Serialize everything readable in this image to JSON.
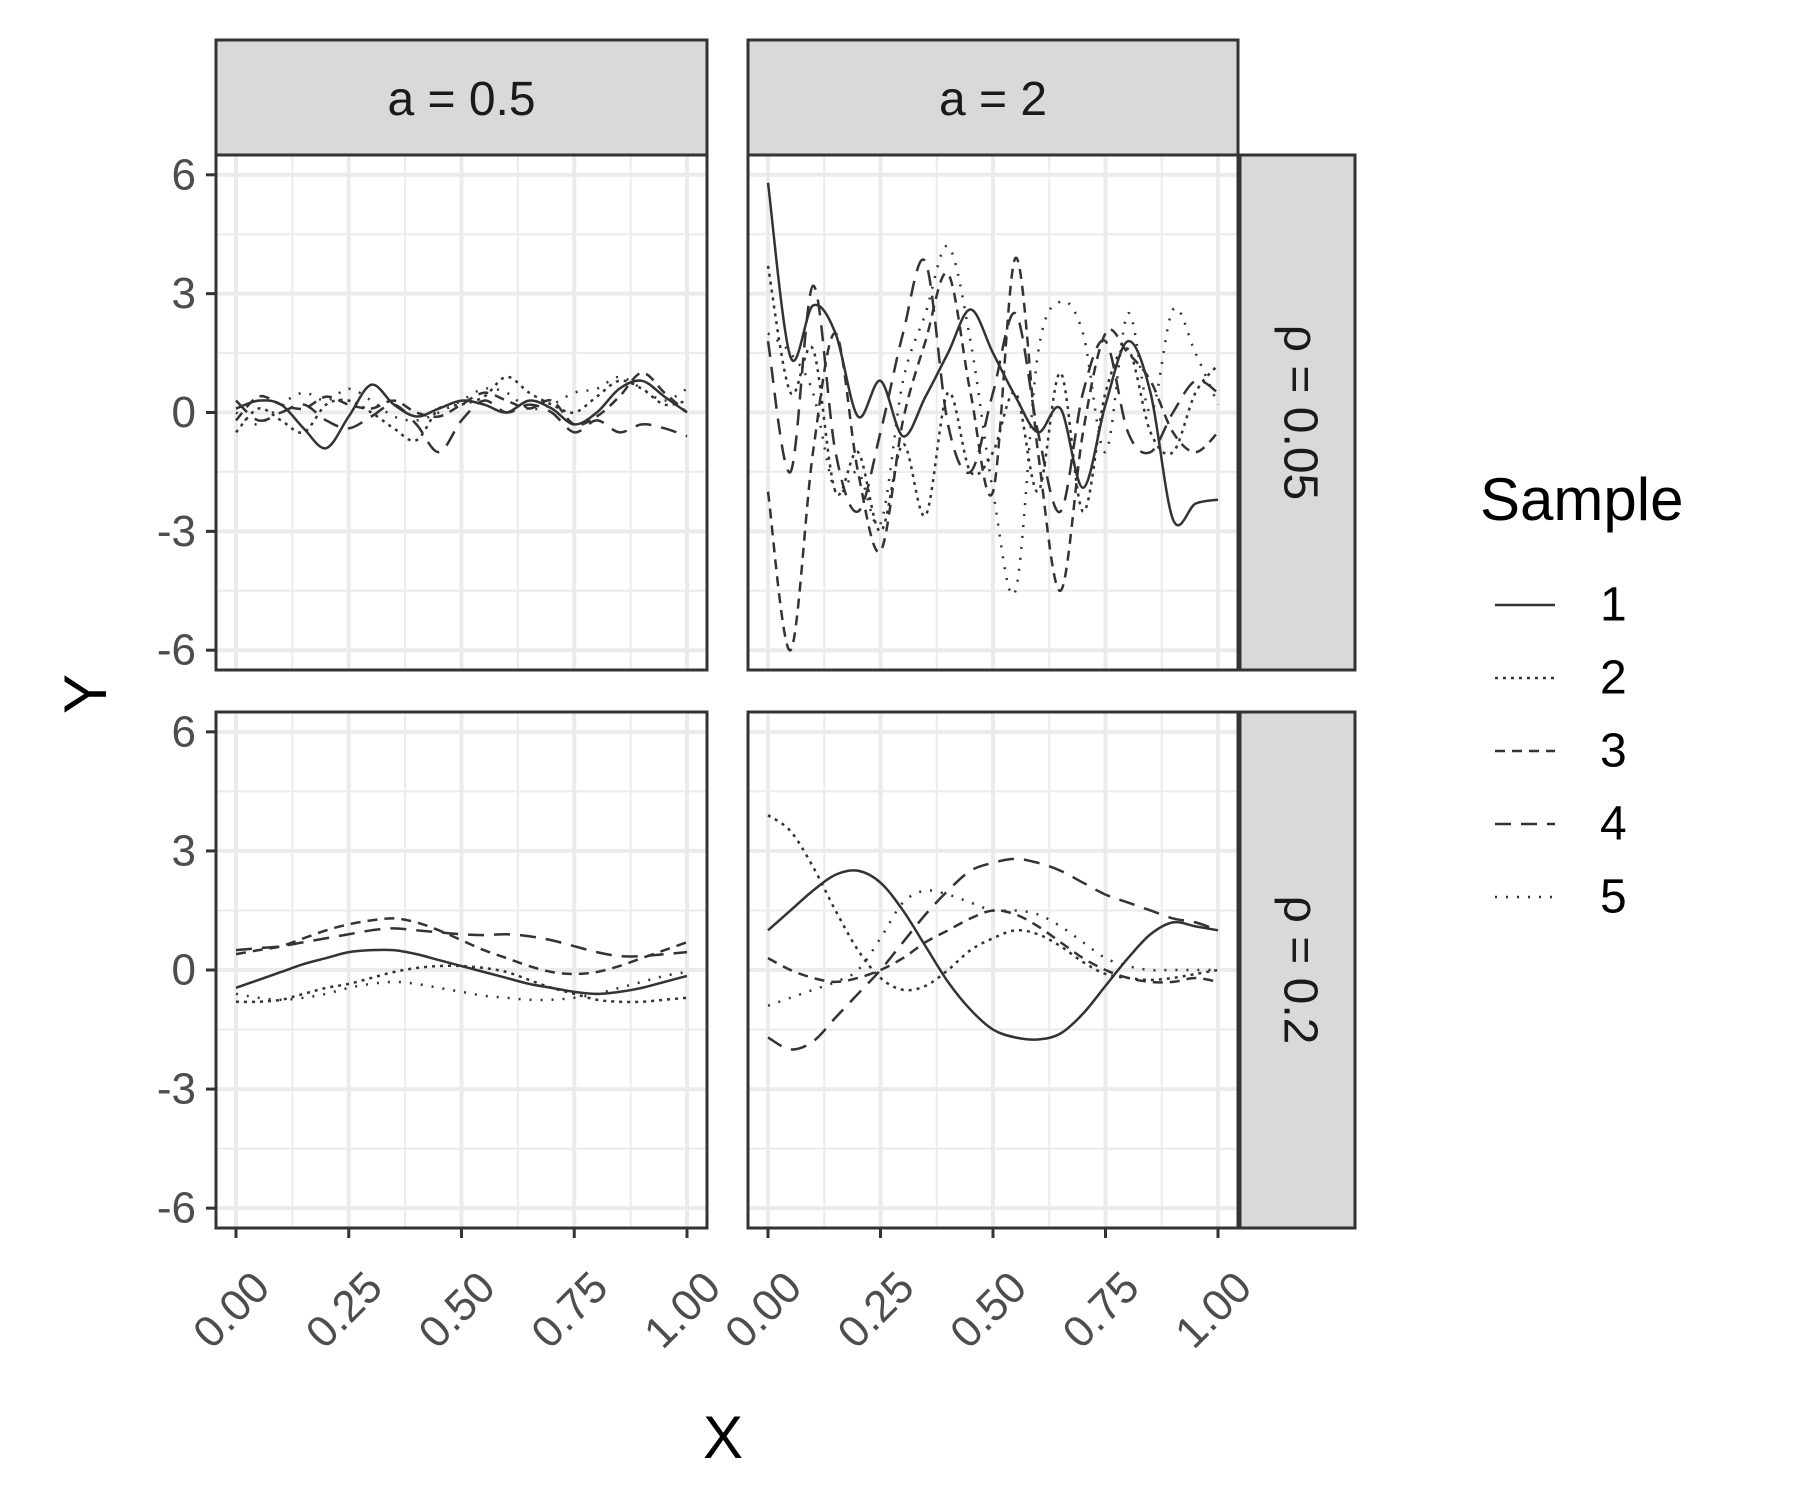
{
  "chart_data": {
    "type": "line",
    "xlabel": "X",
    "ylabel": "Y",
    "x_ticks": [
      "0.00",
      "0.25",
      "0.50",
      "0.75",
      "1.00"
    ],
    "y_ticks": [
      "6",
      "3",
      "0",
      "-3",
      "-6"
    ],
    "xlim": [
      0,
      1
    ],
    "ylim": [
      -6.5,
      6.5
    ],
    "grid": true,
    "legend": {
      "title": "Sample",
      "position": "right",
      "entries": [
        {
          "label": "1",
          "linetype": "solid"
        },
        {
          "label": "2",
          "linetype": "dotted-fine"
        },
        {
          "label": "3",
          "linetype": "dashed"
        },
        {
          "label": "4",
          "linetype": "longdash"
        },
        {
          "label": "5",
          "linetype": "dotted"
        }
      ]
    },
    "col_strips": [
      "a = 0.5",
      "a = 2"
    ],
    "row_strips": [
      "ρ = 0.05",
      "ρ = 0.2"
    ],
    "x": [
      0.0,
      0.05,
      0.1,
      0.15,
      0.2,
      0.25,
      0.3,
      0.35,
      0.4,
      0.45,
      0.5,
      0.55,
      0.6,
      0.65,
      0.7,
      0.75,
      0.8,
      0.85,
      0.9,
      0.95,
      1.0
    ],
    "panels": [
      {
        "row": 0,
        "col": 0,
        "series": [
          {
            "name": "1",
            "values": [
              0.1,
              0.3,
              0.2,
              -0.4,
              -0.9,
              -0.1,
              0.7,
              0.2,
              -0.1,
              0.1,
              0.3,
              0.2,
              0.0,
              0.3,
              0.1,
              -0.3,
              0.0,
              0.6,
              0.8,
              0.4,
              0.0
            ]
          },
          {
            "name": "2",
            "values": [
              -0.5,
              0.1,
              -0.2,
              -0.5,
              0.2,
              0.3,
              0.0,
              -0.4,
              -0.7,
              0.1,
              0.2,
              0.4,
              0.9,
              0.5,
              0.2,
              0.0,
              0.4,
              0.8,
              0.6,
              0.2,
              0.3
            ]
          },
          {
            "name": "3",
            "values": [
              -0.2,
              0.4,
              0.2,
              0.1,
              0.4,
              0.2,
              0.1,
              0.3,
              0.0,
              -0.1,
              0.2,
              0.5,
              0.3,
              0.1,
              0.3,
              -0.3,
              -0.1,
              0.4,
              1.0,
              0.5,
              0.0
            ]
          },
          {
            "name": "4",
            "values": [
              0.3,
              -0.2,
              0.0,
              0.2,
              -0.2,
              -0.4,
              -0.1,
              0.2,
              -0.3,
              -1.0,
              -0.2,
              0.3,
              0.0,
              0.2,
              0.0,
              -0.5,
              -0.2,
              -0.5,
              -0.3,
              -0.4,
              -0.6
            ]
          },
          {
            "name": "5",
            "values": [
              0.0,
              -0.3,
              0.2,
              0.5,
              0.3,
              0.6,
              0.3,
              -0.1,
              -0.2,
              0.0,
              0.3,
              0.6,
              0.5,
              0.1,
              0.2,
              0.5,
              0.6,
              0.9,
              0.6,
              0.3,
              0.6
            ]
          }
        ]
      },
      {
        "row": 0,
        "col": 1,
        "series": [
          {
            "name": "1",
            "values": [
              5.8,
              1.4,
              2.7,
              2.0,
              -0.1,
              0.8,
              -0.6,
              0.4,
              1.5,
              2.6,
              1.5,
              0.4,
              -0.5,
              0.1,
              -1.9,
              0.2,
              1.8,
              0.5,
              -2.7,
              -2.3,
              -2.2
            ]
          },
          {
            "name": "2",
            "values": [
              3.7,
              0.5,
              1.6,
              -2.0,
              -1.0,
              -3.0,
              -0.8,
              -2.6,
              0.5,
              -1.5,
              -1.0,
              0.5,
              -2.0,
              1.0,
              -2.5,
              0.5,
              1.6,
              -0.5,
              -1.0,
              0.5,
              1.2
            ]
          },
          {
            "name": "3",
            "values": [
              -2.0,
              -6.0,
              -1.0,
              2.0,
              -1.5,
              -3.5,
              -0.2,
              1.8,
              3.5,
              0.5,
              -2.0,
              3.9,
              -1.0,
              -4.5,
              -0.5,
              2.0,
              1.5,
              0.8,
              -0.5,
              -1.0,
              -0.5
            ]
          },
          {
            "name": "4",
            "values": [
              1.8,
              -1.5,
              3.2,
              -1.0,
              -2.5,
              -0.5,
              2.0,
              3.8,
              -0.3,
              -1.5,
              0.5,
              2.5,
              -0.5,
              -2.5,
              0.5,
              1.8,
              -0.5,
              -1.0,
              0.0,
              0.8,
              0.5
            ]
          },
          {
            "name": "5",
            "values": [
              2.0,
              1.5,
              0.5,
              -2.0,
              -1.5,
              -2.8,
              0.8,
              2.5,
              4.2,
              1.8,
              -2.0,
              -4.5,
              1.5,
              2.8,
              2.0,
              -1.0,
              2.5,
              0.0,
              2.6,
              1.5,
              0.2
            ]
          }
        ]
      },
      {
        "row": 1,
        "col": 0,
        "series": [
          {
            "name": "1",
            "values": [
              -0.45,
              -0.25,
              -0.05,
              0.15,
              0.3,
              0.45,
              0.5,
              0.5,
              0.4,
              0.25,
              0.1,
              -0.05,
              -0.2,
              -0.35,
              -0.45,
              -0.55,
              -0.6,
              -0.55,
              -0.45,
              -0.3,
              -0.15
            ]
          },
          {
            "name": "2",
            "values": [
              -0.8,
              -0.8,
              -0.75,
              -0.6,
              -0.45,
              -0.35,
              -0.2,
              -0.05,
              0.05,
              0.1,
              0.1,
              0.05,
              -0.05,
              -0.25,
              -0.45,
              -0.6,
              -0.75,
              -0.8,
              -0.8,
              -0.75,
              -0.7
            ]
          },
          {
            "name": "3",
            "values": [
              0.4,
              0.5,
              0.6,
              0.8,
              1.0,
              1.15,
              1.25,
              1.3,
              1.2,
              1.0,
              0.75,
              0.5,
              0.3,
              0.1,
              -0.05,
              -0.1,
              -0.05,
              0.1,
              0.3,
              0.5,
              0.7
            ]
          },
          {
            "name": "4",
            "values": [
              0.5,
              0.55,
              0.6,
              0.7,
              0.8,
              0.9,
              1.0,
              1.05,
              1.0,
              0.95,
              0.9,
              0.88,
              0.9,
              0.85,
              0.75,
              0.6,
              0.45,
              0.35,
              0.35,
              0.4,
              0.45
            ]
          },
          {
            "name": "5",
            "values": [
              -0.6,
              -0.7,
              -0.75,
              -0.7,
              -0.6,
              -0.45,
              -0.35,
              -0.3,
              -0.35,
              -0.45,
              -0.55,
              -0.65,
              -0.7,
              -0.75,
              -0.75,
              -0.7,
              -0.6,
              -0.45,
              -0.3,
              -0.15,
              -0.05
            ]
          }
        ]
      },
      {
        "row": 1,
        "col": 1,
        "series": [
          {
            "name": "1",
            "values": [
              1.0,
              1.5,
              2.0,
              2.4,
              2.5,
              2.2,
              1.5,
              0.6,
              -0.3,
              -1.0,
              -1.5,
              -1.7,
              -1.75,
              -1.6,
              -1.1,
              -0.4,
              0.3,
              0.9,
              1.2,
              1.1,
              1.0
            ]
          },
          {
            "name": "2",
            "values": [
              3.9,
              3.5,
              2.6,
              1.5,
              0.5,
              -0.2,
              -0.5,
              -0.4,
              0.0,
              0.5,
              0.8,
              1.0,
              0.9,
              0.6,
              0.2,
              -0.1,
              -0.2,
              -0.25,
              -0.2,
              -0.1,
              0.0
            ]
          },
          {
            "name": "3",
            "values": [
              0.3,
              0.0,
              -0.2,
              -0.3,
              -0.2,
              0.0,
              0.3,
              0.7,
              1.0,
              1.3,
              1.5,
              1.4,
              1.1,
              0.7,
              0.3,
              0.0,
              -0.2,
              -0.3,
              -0.3,
              -0.2,
              -0.3
            ]
          },
          {
            "name": "4",
            "values": [
              -1.7,
              -2.0,
              -1.8,
              -1.2,
              -0.6,
              0.0,
              0.7,
              1.4,
              2.0,
              2.5,
              2.7,
              2.8,
              2.7,
              2.5,
              2.2,
              1.9,
              1.7,
              1.5,
              1.3,
              1.2,
              1.0
            ]
          },
          {
            "name": "5",
            "values": [
              -0.9,
              -0.7,
              -0.5,
              -0.3,
              0.0,
              0.8,
              1.7,
              2.0,
              1.9,
              1.7,
              1.5,
              1.5,
              1.4,
              1.1,
              0.7,
              0.3,
              0.1,
              0.0,
              0.0,
              0.0,
              0.0
            ]
          }
        ]
      }
    ]
  }
}
